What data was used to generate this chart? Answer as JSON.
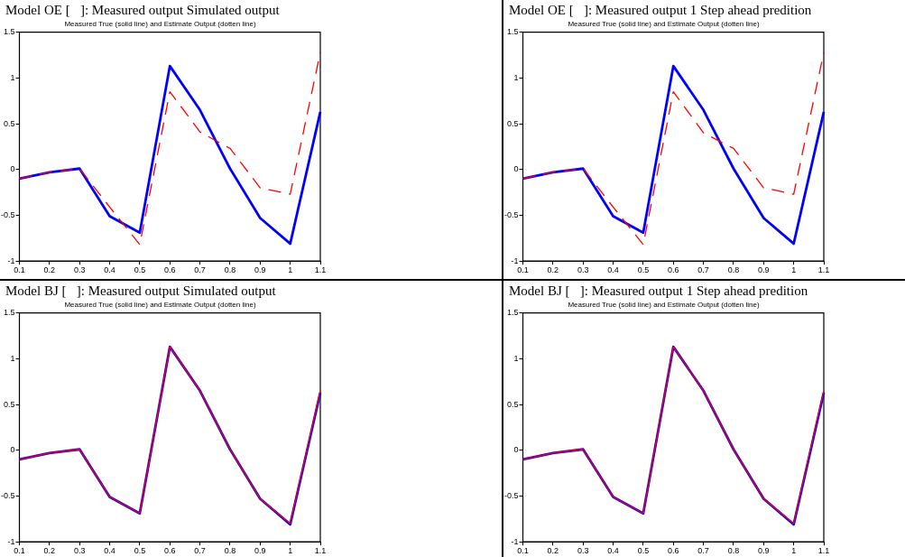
{
  "chart_data": [
    {
      "type": "line",
      "title": "Model OE [   ]: Measured output Simulated output",
      "subtitle": "Measured True (solid line) and Estimate Output (dotten line)",
      "x": [
        0.1,
        0.2,
        0.3,
        0.4,
        0.5,
        0.6,
        0.7,
        0.8,
        0.9,
        1,
        1.1
      ],
      "series": [
        {
          "color": "#0000ff",
          "line_style": "solid",
          "values": [
            -0.1,
            -0.03,
            0.01,
            -0.51,
            -0.69,
            1.13,
            0.65,
            0.01,
            -0.53,
            -0.81,
            0.63
          ]
        },
        {
          "color": "#ff0000",
          "line_style": "dashed",
          "values": [
            -0.1,
            -0.03,
            0.01,
            -0.41,
            -0.82,
            0.85,
            0.41,
            0.23,
            -0.2,
            -0.27,
            1.28
          ]
        }
      ],
      "xlim": [
        0.1,
        1.1
      ],
      "xticks": [
        0.1,
        0.2,
        0.3,
        0.4,
        0.5,
        0.6,
        0.7,
        0.8,
        0.9,
        1,
        1.1
      ],
      "ylim": [
        -1,
        1.5
      ],
      "yticks": [
        -1,
        -0.5,
        0,
        0.5,
        1,
        1.5
      ],
      "grid": false,
      "legend": false,
      "marker": "none"
    },
    {
      "type": "line",
      "title": "Model OE [   ]: Measured output 1 Step ahead predition",
      "subtitle": "Measured True (solid line) and Estimate Output (dotten line)",
      "x": [
        0.1,
        0.2,
        0.3,
        0.4,
        0.5,
        0.6,
        0.7,
        0.8,
        0.9,
        1,
        1.1
      ],
      "series": [
        {
          "color": "#0000ff",
          "line_style": "solid",
          "values": [
            -0.1,
            -0.03,
            0.01,
            -0.51,
            -0.69,
            1.13,
            0.65,
            0.01,
            -0.53,
            -0.81,
            0.63
          ]
        },
        {
          "color": "#ff0000",
          "line_style": "dashed",
          "values": [
            -0.1,
            -0.03,
            0.01,
            -0.41,
            -0.82,
            0.85,
            0.4,
            0.23,
            -0.2,
            -0.27,
            1.28
          ]
        }
      ],
      "xlim": [
        0.1,
        1.1
      ],
      "xticks": [
        0.1,
        0.2,
        0.3,
        0.4,
        0.5,
        0.6,
        0.7,
        0.8,
        0.9,
        1,
        1.1
      ],
      "ylim": [
        -1,
        1.5
      ],
      "yticks": [
        -1,
        -0.5,
        0,
        0.5,
        1,
        1.5
      ],
      "grid": false,
      "legend": false,
      "marker": "none"
    },
    {
      "type": "line",
      "title": "Model BJ [   ]: Measured output Simulated output",
      "subtitle": "Measured True (solid line) and Estimate Output (dotten line)",
      "x": [
        0.1,
        0.2,
        0.3,
        0.4,
        0.5,
        0.6,
        0.7,
        0.8,
        0.9,
        1,
        1.1
      ],
      "series": [
        {
          "color": "#0000ff",
          "line_style": "solid",
          "values": [
            -0.1,
            -0.03,
            0.01,
            -0.51,
            -0.69,
            1.13,
            0.65,
            0.01,
            -0.53,
            -0.81,
            0.63
          ]
        },
        {
          "color": "#ff0000",
          "line_style": "solid",
          "values": [
            -0.1,
            -0.03,
            0.01,
            -0.51,
            -0.69,
            1.13,
            0.65,
            0.01,
            -0.53,
            -0.8,
            0.65
          ]
        }
      ],
      "xlim": [
        0.1,
        1.1
      ],
      "xticks": [
        0.1,
        0.2,
        0.3,
        0.4,
        0.5,
        0.6,
        0.7,
        0.8,
        0.9,
        1,
        1.1
      ],
      "ylim": [
        -1,
        1.5
      ],
      "yticks": [
        -1,
        -0.5,
        0,
        0.5,
        1,
        1.5
      ],
      "grid": false,
      "legend": false,
      "marker": "none"
    },
    {
      "type": "line",
      "title": "Model BJ [   ]: Measured output 1 Step ahead predition",
      "subtitle": "Measured True (solid line) and Estimate Output (dotten line)",
      "x": [
        0.1,
        0.2,
        0.3,
        0.4,
        0.5,
        0.6,
        0.7,
        0.8,
        0.9,
        1,
        1.1
      ],
      "series": [
        {
          "color": "#0000ff",
          "line_style": "solid",
          "values": [
            -0.1,
            -0.03,
            0.01,
            -0.51,
            -0.69,
            1.13,
            0.65,
            0.01,
            -0.53,
            -0.81,
            0.63
          ]
        },
        {
          "color": "#ff0000",
          "line_style": "solid",
          "values": [
            -0.1,
            -0.03,
            0.01,
            -0.51,
            -0.69,
            1.13,
            0.65,
            0.01,
            -0.53,
            -0.8,
            0.65
          ]
        }
      ],
      "xlim": [
        0.1,
        1.1
      ],
      "xticks": [
        0.1,
        0.2,
        0.3,
        0.4,
        0.5,
        0.6,
        0.7,
        0.8,
        0.9,
        1,
        1.1
      ],
      "ylim": [
        -1,
        1.5
      ],
      "yticks": [
        -1,
        -0.5,
        0,
        0.5,
        1,
        1.5
      ],
      "grid": false,
      "legend": false,
      "marker": "none"
    }
  ]
}
